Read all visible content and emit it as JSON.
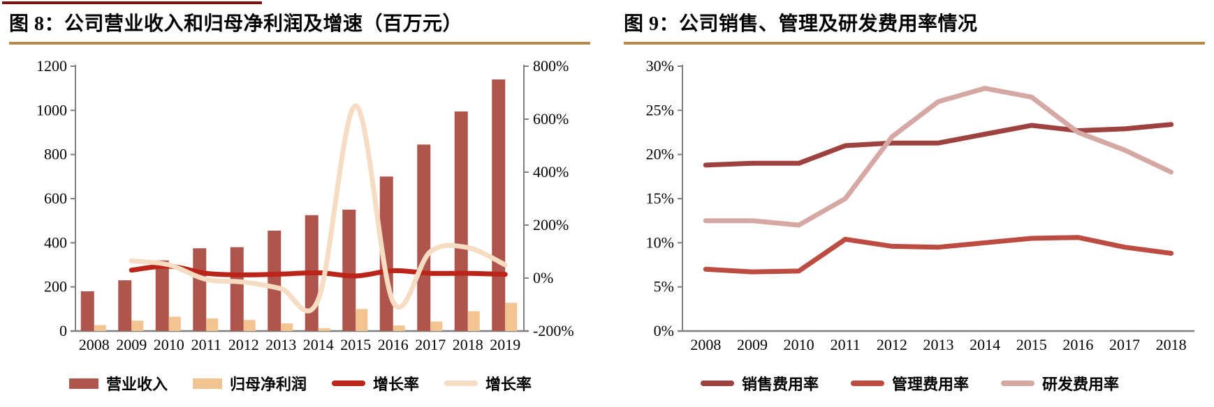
{
  "accent_colors": {
    "top_border_red": "#7A150F",
    "title_divider_gold": "#B58B4C",
    "axis_gray": "#7F7F7F",
    "text_black": "#000000"
  },
  "chart_data": [
    {
      "type": "bar",
      "title": "图 8：公司营业收入和归母净利润及增速（百万元）",
      "categories": [
        "2008",
        "2009",
        "2010",
        "2011",
        "2012",
        "2013",
        "2014",
        "2015",
        "2016",
        "2017",
        "2018",
        "2019"
      ],
      "left_axis": {
        "min": 0,
        "max": 1200,
        "step": 200,
        "tick_labels": [
          "1200",
          "1000",
          "800",
          "600",
          "400",
          "200",
          "0"
        ]
      },
      "right_axis": {
        "min": -200,
        "max": 800,
        "step": 200,
        "tick_labels": [
          "800%",
          "600%",
          "400%",
          "200%",
          "0%",
          "-200%"
        ]
      },
      "grid": "off",
      "legend_position": "bottom",
      "series": [
        {
          "name": "营业收入",
          "type": "bar",
          "axis": "left",
          "color": "#AE554E",
          "values": [
            180,
            230,
            320,
            375,
            380,
            455,
            525,
            550,
            700,
            845,
            995,
            1140
          ]
        },
        {
          "name": "归母净利润",
          "type": "bar",
          "axis": "left",
          "color": "#F2C492",
          "values": [
            27,
            47,
            65,
            57,
            50,
            35,
            13,
            100,
            25,
            43,
            90,
            128
          ]
        },
        {
          "name": "增长率",
          "type": "line",
          "axis": "right",
          "color": "#BB2418",
          "smooth": true,
          "values": [
            null,
            30,
            45,
            18,
            12,
            15,
            20,
            8,
            28,
            18,
            18,
            14
          ]
        },
        {
          "name": "增长率",
          "type": "line",
          "axis": "right",
          "color": "#F6DCC2",
          "smooth": true,
          "values": [
            null,
            65,
            50,
            -5,
            -15,
            -40,
            -80,
            650,
            -90,
            100,
            115,
            50
          ]
        }
      ]
    },
    {
      "type": "line",
      "title": "图 9：公司销售、管理及研发费用率情况",
      "categories": [
        "2008",
        "2009",
        "2010",
        "2011",
        "2012",
        "2013",
        "2014",
        "2015",
        "2016",
        "2017",
        "2018"
      ],
      "left_axis": {
        "min": 0,
        "max": 30,
        "step": 5,
        "tick_labels": [
          "30%",
          "25%",
          "20%",
          "15%",
          "10%",
          "5%",
          "0%"
        ]
      },
      "grid": "off",
      "legend_position": "bottom",
      "series": [
        {
          "name": "销售费用率",
          "type": "line",
          "color": "#9E4240",
          "smooth": false,
          "values": [
            18.8,
            19.0,
            19.0,
            21.0,
            21.3,
            21.3,
            22.3,
            23.3,
            22.7,
            22.9,
            23.4
          ]
        },
        {
          "name": "管理费用率",
          "type": "line",
          "color": "#BC4C41",
          "smooth": false,
          "values": [
            7.0,
            6.7,
            6.8,
            10.4,
            9.6,
            9.5,
            10.0,
            10.5,
            10.6,
            9.5,
            8.8
          ]
        },
        {
          "name": "研发费用率",
          "type": "line",
          "color": "#D5A8A4",
          "smooth": false,
          "values": [
            12.5,
            12.5,
            12.0,
            15.0,
            22.0,
            26.0,
            27.5,
            26.5,
            22.5,
            20.5,
            18.0
          ]
        }
      ]
    }
  ]
}
